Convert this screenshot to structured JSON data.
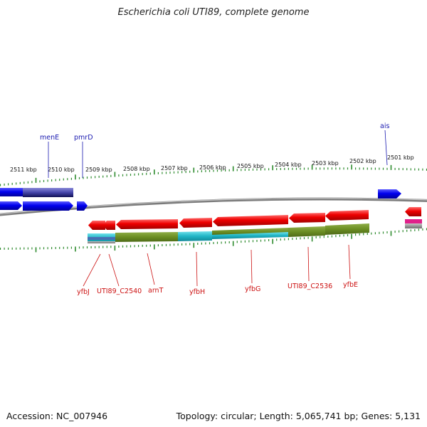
{
  "title": "Escherichia coli UTI89, complete genome",
  "footer": {
    "accession": "Accession: NC_007946",
    "summary": "Topology: circular; Length: 5,065,741 bp; Genes: 5,131"
  },
  "colors": {
    "backbone": "#888888",
    "tick": "#2e8b2e",
    "forward": "#dd0000",
    "reverse": "#0000dd",
    "olive": "#6b8e23",
    "cyan": "#22b8c8",
    "navy": "#111166",
    "pink": "#e0208a"
  },
  "ruler_labels": [
    "2511 kbp",
    "2510 kbp",
    "2509 kbp",
    "2508 kbp",
    "2507 kbp",
    "2506 kbp",
    "2505 kbp",
    "2504 kbp",
    "2503 kbp",
    "2502 kbp",
    "2501 kbp"
  ],
  "top_genes": [
    "menE",
    "pmrD",
    "ais"
  ],
  "bottom_genes": [
    "yfbJ",
    "UTI89_C2540",
    "arnT",
    "yfbH",
    "yfbG",
    "UTI89_C2536",
    "yfbE"
  ]
}
